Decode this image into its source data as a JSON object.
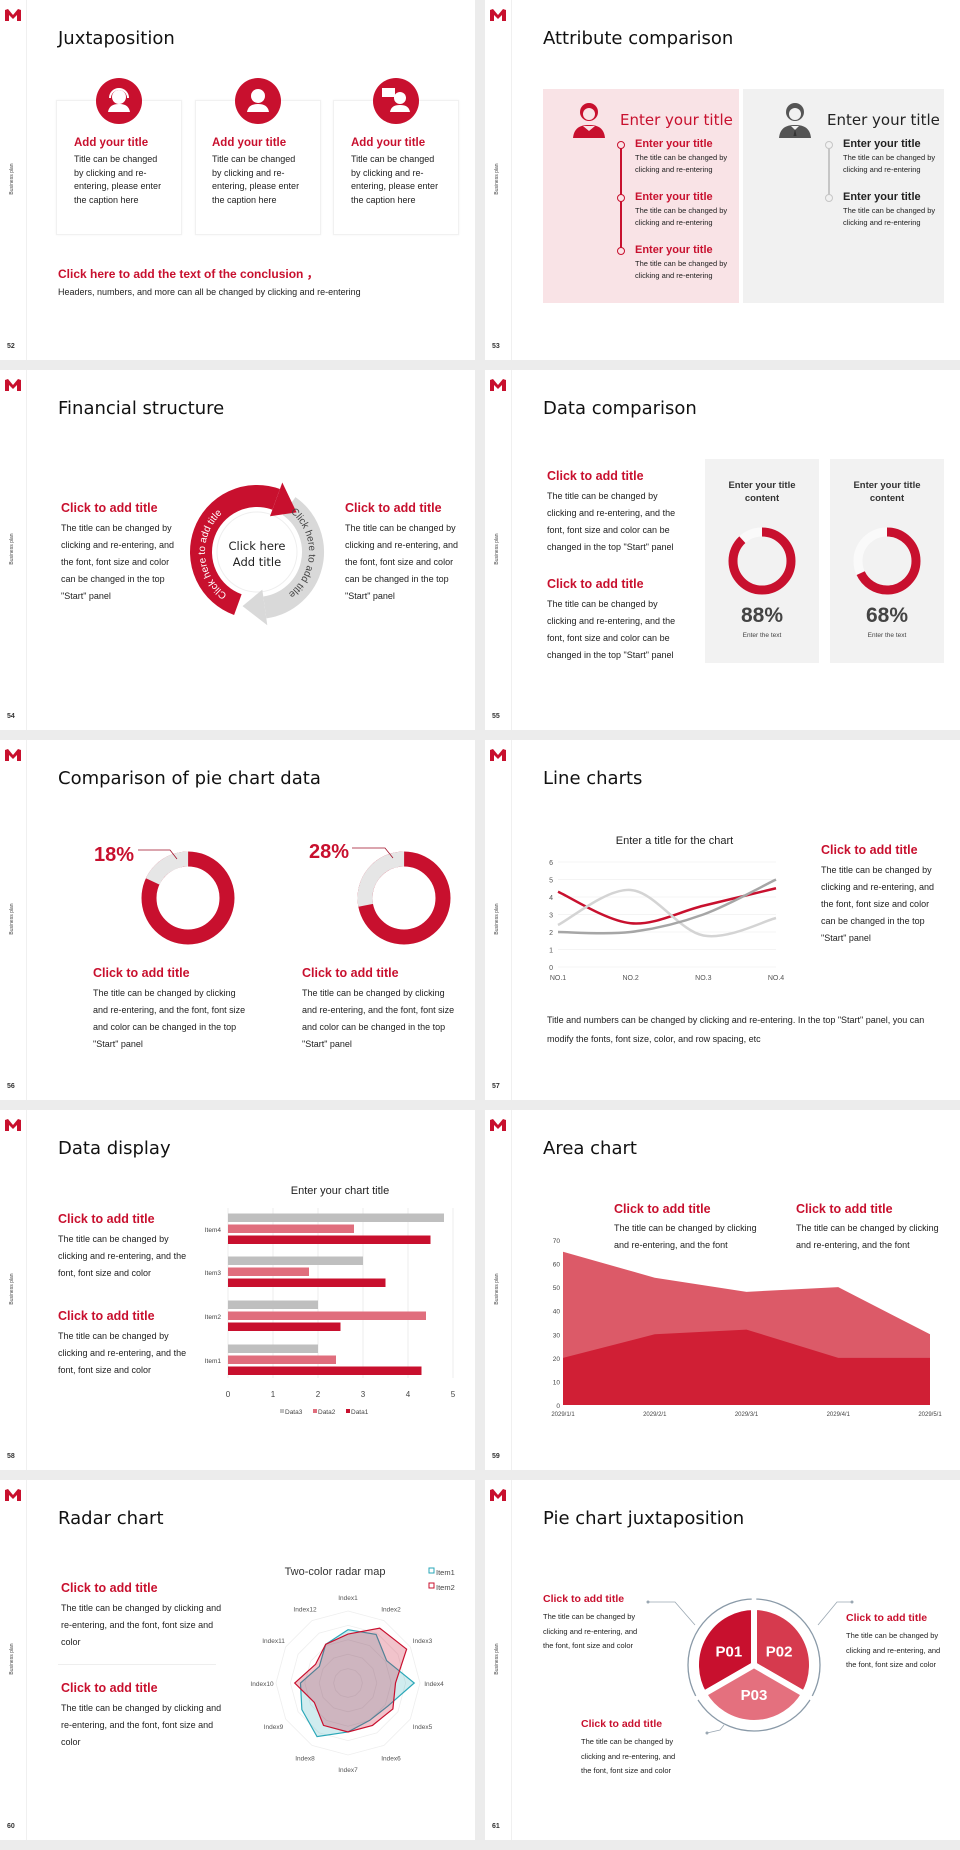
{
  "common": {
    "logo": "M",
    "side_label": "Business plan",
    "red": "#c8102e",
    "pink": "#e06e7d",
    "gray": "#bfbfbf"
  },
  "s52": {
    "page": "52",
    "title": "Juxtaposition",
    "cards": [
      {
        "icon": "headset-agent-icon",
        "title": "Add your title",
        "body": "Title can be changed by clicking and re-entering, please enter the caption here"
      },
      {
        "icon": "user-icon",
        "title": "Add your title",
        "body": "Title can be changed by clicking and re-entering, please enter the caption here"
      },
      {
        "icon": "user-chat-icon",
        "title": "Add your title",
        "body": "Title can be changed by clicking and re-entering, please enter the caption here"
      }
    ],
    "conclusion": "Click here to add the text of the conclusion ，",
    "conclusion_sub": "Headers, numbers, and more can all be changed by clicking and re-entering"
  },
  "s53": {
    "page": "53",
    "title": "Attribute comparison",
    "left": {
      "icon": "female-user-icon",
      "heading": "Enter your title",
      "items": [
        {
          "title": "Enter your title",
          "body": "The title can be changed by clicking and re-entering"
        },
        {
          "title": "Enter your title",
          "body": "The title can be changed by clicking and re-entering"
        },
        {
          "title": "Enter your title",
          "body": "The title can be changed by clicking and re-entering"
        }
      ]
    },
    "right": {
      "icon": "male-user-icon",
      "heading": "Enter your title",
      "items": [
        {
          "title": "Enter your title",
          "body": "The title can be changed by clicking and re-entering"
        },
        {
          "title": "Enter your title",
          "body": "The title can be changed by clicking and re-entering"
        }
      ]
    }
  },
  "s54": {
    "page": "54",
    "title": "Financial structure",
    "left": {
      "title": "Click to add title",
      "body": "The title can be changed by clicking and re-entering, and the font, font size and color can be changed in the top \"Start\" panel"
    },
    "right": {
      "title": "Click to add title",
      "body": "The title can be changed by clicking and re-entering, and the font, font size and color can be changed in the top \"Start\" panel"
    },
    "center_line1": "Click here",
    "center_line2": "Add title",
    "red_arc_text": "Click here to add title",
    "gray_arc_text": "Click here to add title"
  },
  "s55": {
    "page": "55",
    "title": "Data comparison",
    "items": [
      {
        "title": "Click to add title",
        "body": "The title can be changed by clicking and re-entering, and the font, font size and color can be changed in the top \"Start\" panel"
      },
      {
        "title": "Click to add title",
        "body": "The title can be changed by clicking and re-entering, and the font, font size and color can be changed in the top \"Start\" panel"
      }
    ],
    "cards": [
      {
        "title": "Enter your title content",
        "percent": 88,
        "label": "88%",
        "sub": "Enter the text"
      },
      {
        "title": "Enter your title content",
        "percent": 68,
        "label": "68%",
        "sub": "Enter the text"
      }
    ]
  },
  "s56": {
    "page": "56",
    "title": "Comparison of pie chart data",
    "charts": [
      {
        "percent": 18,
        "label": "18%",
        "title": "Click to add title",
        "body": "The title can be changed by clicking and re-entering, and the font, font size and color can be changed in the top \"Start\" panel"
      },
      {
        "percent": 28,
        "label": "28%",
        "title": "Click to add title",
        "body": "The title can be changed by clicking and re-entering, and the font, font size and color can be changed in the top \"Start\" panel"
      }
    ]
  },
  "s57": {
    "page": "57",
    "title": "Line charts",
    "side_title": "Click to add title",
    "side_body": "The title can be changed by clicking and re-entering, and the font, font size and color can be changed in the top \"Start\" panel",
    "footer": "Title and numbers can be changed by clicking and re-entering. In the top \"Start\" panel, you can modify the fonts, font size, color, and row spacing, etc"
  },
  "s58": {
    "page": "58",
    "title": "Data display",
    "items": [
      {
        "title": "Click to add title",
        "body": "The title can be changed by clicking and re-entering, and the font, font size and color"
      },
      {
        "title": "Click to add title",
        "body": "The title can be changed by clicking and re-entering, and the font, font size and color"
      }
    ]
  },
  "s59": {
    "page": "59",
    "title": "Area chart",
    "items": [
      {
        "title": "Click to add title",
        "body": "The title can be changed by clicking and re-entering, and the font"
      },
      {
        "title": "Click to add title",
        "body": "The title can be changed by clicking and re-entering, and the font"
      }
    ]
  },
  "s60": {
    "page": "60",
    "title": "Radar chart",
    "items": [
      {
        "title": "Click to add title",
        "body": "The title can be changed by clicking and re-entering, and the font, font size and color"
      },
      {
        "title": "Click to add title",
        "body": "The title can be changed by clicking and re-entering, and the font, font size and color"
      }
    ]
  },
  "s61": {
    "page": "61",
    "title": "Pie chart juxtaposition",
    "segments": [
      "P01",
      "P02",
      "P03"
    ],
    "items": [
      {
        "title": "Click to add title",
        "body": "The title can be changed by clicking and re-entering, and the font, font size and color"
      },
      {
        "title": "Click to add title",
        "body": "The title can be changed by clicking and re-entering, and the font, font size and color"
      },
      {
        "title": "Click to add title",
        "body": "The title can be changed by clicking and re-entering, and the font, font size and color"
      }
    ]
  },
  "chart_data": [
    {
      "type": "line",
      "title": "Enter a title for the chart",
      "categories": [
        "NO.1",
        "NO.2",
        "NO.3",
        "NO.4"
      ],
      "ylim": [
        0,
        6
      ],
      "yticks": [
        0,
        1,
        2,
        3,
        4,
        5,
        6
      ],
      "grid": true,
      "series": [
        {
          "values": [
            4.3,
            2.5,
            3.5,
            4.5
          ],
          "color": "#c8102e"
        },
        {
          "values": [
            2.4,
            4.4,
            1.8,
            2.8
          ],
          "color": "#d4d4d4"
        },
        {
          "values": [
            2,
            2,
            3,
            5
          ],
          "color": "#a6a6a6"
        }
      ]
    },
    {
      "type": "bar",
      "orientation": "horizontal",
      "title": "Enter your chart title",
      "categories": [
        "Item1",
        "Item2",
        "Item3",
        "Item4"
      ],
      "xlim": [
        0,
        5
      ],
      "xticks": [
        0,
        1,
        2,
        3,
        4,
        5
      ],
      "grid": true,
      "legend": "bottom",
      "series": [
        {
          "name": "Data3",
          "values": [
            2,
            2,
            3,
            4.8
          ],
          "color": "#bfbfbf"
        },
        {
          "name": "Data2",
          "values": [
            2.4,
            4.4,
            1.8,
            2.8
          ],
          "color": "#e06e7d"
        },
        {
          "name": "Data1",
          "values": [
            4.3,
            2.5,
            3.5,
            4.5
          ],
          "color": "#c8102e"
        }
      ]
    },
    {
      "type": "area",
      "categories": [
        "2029/1/1",
        "2029/2/1",
        "2029/3/1",
        "2029/4/1",
        "2029/5/1"
      ],
      "ylim": [
        0,
        70
      ],
      "yticks": [
        0,
        10,
        20,
        30,
        40,
        50,
        60,
        70
      ],
      "series": [
        {
          "values": [
            65,
            54,
            48,
            50,
            30
          ],
          "color": "#dc5a68"
        },
        {
          "values": [
            20,
            30,
            32,
            20,
            20
          ],
          "color": "#d01f35"
        }
      ]
    },
    {
      "type": "radar",
      "title": "Two-color radar map",
      "categories": [
        "Index1",
        "Index2",
        "Index3",
        "Index4",
        "Index5",
        "Index6",
        "Index7",
        "Index8",
        "Index9",
        "Index10",
        "Index11",
        "Index12"
      ],
      "rmax": 5,
      "legend": "top-right",
      "series": [
        {
          "name": "Item1",
          "values": [
            3.7,
            3.9,
            3.1,
            4.6,
            3.2,
            3.0,
            3.4,
            4.3,
            3.7,
            3.3,
            2.3,
            3.1
          ],
          "color": "#2aa7b8"
        },
        {
          "name": "Item2",
          "values": [
            3.4,
            4.4,
            4.7,
            3.3,
            3.6,
            3.4,
            3.4,
            3.4,
            2.7,
            3.7,
            2.6,
            3.1
          ],
          "color": "#c8102e"
        }
      ]
    }
  ]
}
